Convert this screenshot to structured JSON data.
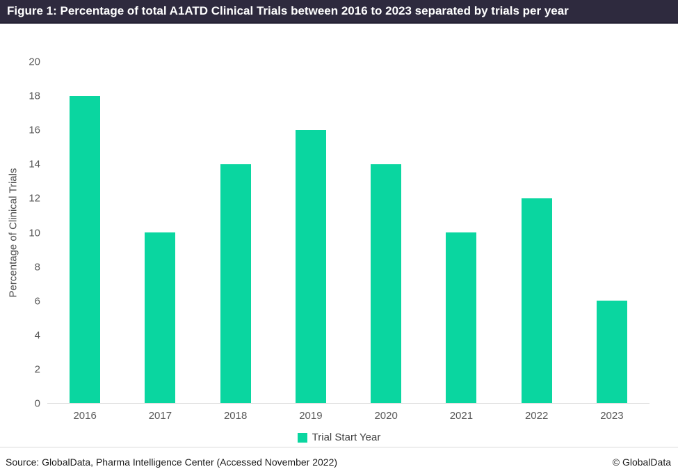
{
  "header": {
    "title": "Figure 1: Percentage of total A1ATD Clinical Trials between 2016 to 2023 separated by trials per year"
  },
  "chart_data": {
    "type": "bar",
    "categories": [
      "2016",
      "2017",
      "2018",
      "2019",
      "2020",
      "2021",
      "2022",
      "2023"
    ],
    "values": [
      18,
      10,
      14,
      16,
      14,
      10,
      12,
      6
    ],
    "title": "Figure 1: Percentage of total A1ATD Clinical Trials between 2016 to 2023 separated by trials per year",
    "xlabel": "",
    "ylabel": "Percentage of Clinical Trials",
    "ylim": [
      0,
      20
    ],
    "ytick_step": 2,
    "grid": false,
    "legend_position": "bottom",
    "legend": [
      {
        "label": "Trial Start Year",
        "color": "#0ad6a0"
      }
    ],
    "bar_color": "#0ad6a0"
  },
  "footer": {
    "source": "Source: GlobalData, Pharma Intelligence Center (Accessed November 2022)",
    "copyright": "© GlobalData"
  },
  "colors": {
    "header_bg": "#2e2a3e",
    "header_text": "#ffffff",
    "bar": "#0ad6a0",
    "axis_line": "#d9d9d9",
    "tick_text": "#595959",
    "footer_text": "#1a1a1a"
  }
}
